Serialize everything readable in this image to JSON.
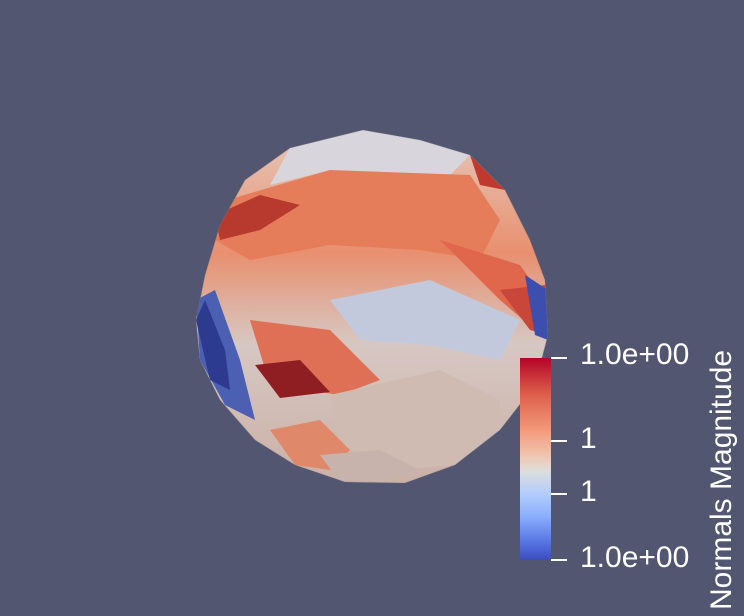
{
  "colors": {
    "background": "#525671",
    "colormap_high": "#b40426",
    "colormap_mid": "#dddddd",
    "colormap_low": "#3b4cc0"
  },
  "scalar_bar": {
    "title": "Normals Magnitude",
    "labels": [
      "1.0e+00",
      "1",
      "1",
      "1.0e+00"
    ]
  }
}
